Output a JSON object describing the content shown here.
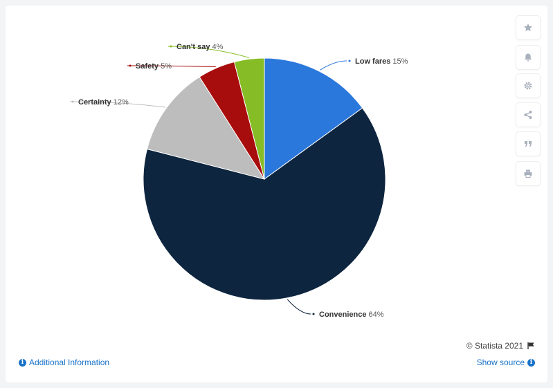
{
  "colors": {
    "low_fares": "#2b78dc",
    "convenience": "#0e253f",
    "certainty": "#bdbdbd",
    "safety": "#a80d0d",
    "cant_say": "#86bc25",
    "link": "#1a73c8"
  },
  "toolbar": {
    "buttons": [
      {
        "name": "star-icon"
      },
      {
        "name": "bell-icon"
      },
      {
        "name": "gear-icon"
      },
      {
        "name": "share-icon"
      },
      {
        "name": "quote-icon"
      },
      {
        "name": "print-icon"
      }
    ]
  },
  "footer": {
    "credit": "© Statista 2021",
    "additional_info": "Additional Information",
    "show_source": "Show source"
  },
  "chart_data": {
    "type": "pie",
    "title": "",
    "slices": [
      {
        "label": "Low fares",
        "value": 15,
        "display": "15%",
        "color": "#2b78dc"
      },
      {
        "label": "Convenience",
        "value": 64,
        "display": "64%",
        "color": "#0e253f"
      },
      {
        "label": "Certainty",
        "value": 12,
        "display": "12%",
        "color": "#bdbdbd"
      },
      {
        "label": "Safety",
        "value": 5,
        "display": "5%",
        "color": "#a80d0d"
      },
      {
        "label": "Can't say",
        "value": 4,
        "display": "4%",
        "color": "#86bc25"
      }
    ],
    "start": "12 o'clock",
    "direction": "clockwise",
    "legend": "none"
  }
}
